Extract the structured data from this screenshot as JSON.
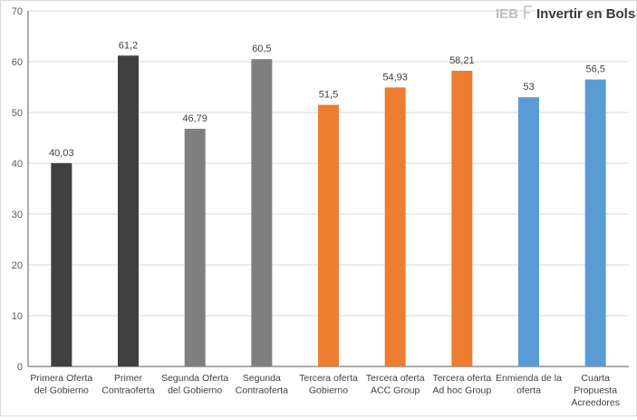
{
  "logo": {
    "prefix": "IEB",
    "name": "Invertir en Bolsa"
  },
  "colors": {
    "dark": "#404040",
    "gray": "#7f7f7f",
    "orange": "#ed7d31",
    "blue": "#5b9bd5",
    "grid": "#d9d9d9",
    "axis": "#595959"
  },
  "chart_data": {
    "type": "bar",
    "title": "",
    "xlabel": "",
    "ylabel": "",
    "ylim": [
      0,
      70
    ],
    "yticks": [
      0,
      10,
      20,
      30,
      40,
      50,
      60,
      70
    ],
    "grid": true,
    "legend": "none",
    "categories": [
      [
        "Primera Oferta",
        "del Gobierno"
      ],
      [
        "Primer",
        "Contraoferta"
      ],
      [
        "Segunda Oferta",
        "del Gobierno"
      ],
      [
        "Segunda",
        "Contraoferta"
      ],
      [
        "Tercera oferta",
        "Gobierno"
      ],
      [
        "Tercera oferta",
        "ACC Group"
      ],
      [
        "Tercera oferta",
        "Ad hoc Group"
      ],
      [
        "Enmienda de la",
        "oferta"
      ],
      [
        "Cuarta",
        "Propuesta",
        "Acreedores"
      ]
    ],
    "values": [
      40.03,
      61.2,
      46.79,
      60.5,
      51.5,
      54.93,
      58.21,
      53,
      56.5
    ],
    "value_labels": [
      "40,03",
      "61,2",
      "46,79",
      "60,5",
      "51,5",
      "54,93",
      "58,21",
      "53",
      "56,5"
    ],
    "bar_colors": [
      "#404040",
      "#404040",
      "#7f7f7f",
      "#7f7f7f",
      "#ed7d31",
      "#ed7d31",
      "#ed7d31",
      "#5b9bd5",
      "#5b9bd5"
    ]
  }
}
